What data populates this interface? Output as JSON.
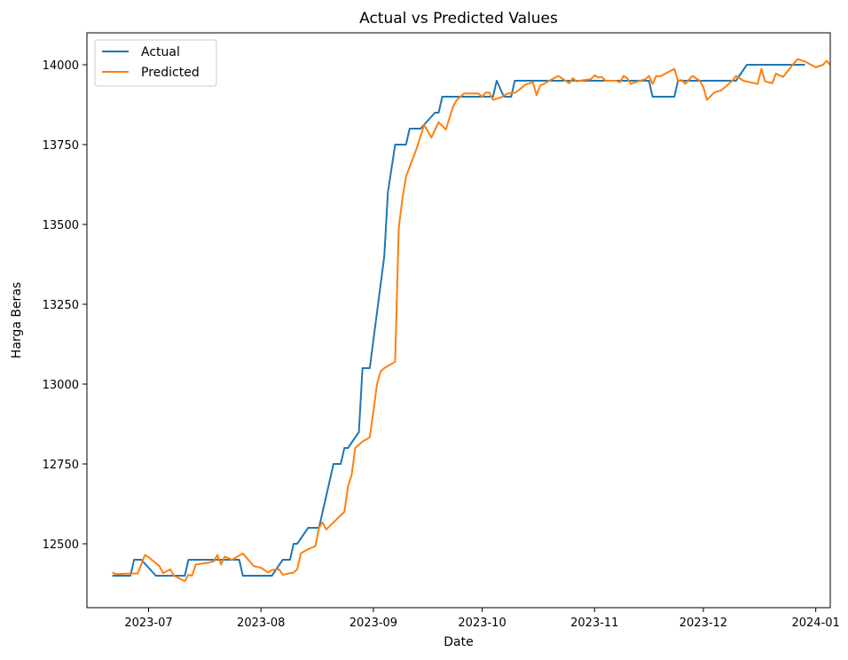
{
  "chart_data": {
    "type": "line",
    "title": "Actual vs Predicted Values",
    "xlabel": "Date",
    "ylabel": "Harga Beras",
    "xlim": [
      "2023-06-14",
      "2024-01-05"
    ],
    "ylim": [
      12300,
      14100
    ],
    "x_ticks": [
      "2023-07",
      "2023-08",
      "2023-09",
      "2023-10",
      "2023-11",
      "2023-12",
      "2024-01"
    ],
    "y_ticks": [
      12500,
      12750,
      13000,
      13250,
      13500,
      13750,
      14000
    ],
    "legend_position": "top-left",
    "grid": false,
    "colors": {
      "actual": "#1f77b4",
      "predicted": "#ff7f0e"
    },
    "series": [
      {
        "name": "Actual",
        "color": "#1f77b4",
        "points": [
          [
            "2023-06-21",
            12400
          ],
          [
            "2023-06-26",
            12400
          ],
          [
            "2023-06-27",
            12450
          ],
          [
            "2023-06-29",
            12450
          ],
          [
            "2023-07-03",
            12400
          ],
          [
            "2023-07-11",
            12400
          ],
          [
            "2023-07-12",
            12450
          ],
          [
            "2023-07-26",
            12450
          ],
          [
            "2023-07-27",
            12400
          ],
          [
            "2023-08-04",
            12400
          ],
          [
            "2023-08-07",
            12450
          ],
          [
            "2023-08-09",
            12450
          ],
          [
            "2023-08-10",
            12500
          ],
          [
            "2023-08-11",
            12500
          ],
          [
            "2023-08-14",
            12550
          ],
          [
            "2023-08-17",
            12550
          ],
          [
            "2023-08-21",
            12750
          ],
          [
            "2023-08-23",
            12750
          ],
          [
            "2023-08-24",
            12800
          ],
          [
            "2023-08-25",
            12800
          ],
          [
            "2023-08-28",
            12850
          ],
          [
            "2023-08-29",
            13050
          ],
          [
            "2023-08-31",
            13050
          ],
          [
            "2023-09-04",
            13400
          ],
          [
            "2023-09-05",
            13600
          ],
          [
            "2023-09-07",
            13750
          ],
          [
            "2023-09-10",
            13750
          ],
          [
            "2023-09-11",
            13800
          ],
          [
            "2023-09-14",
            13800
          ],
          [
            "2023-09-18",
            13850
          ],
          [
            "2023-09-19",
            13850
          ],
          [
            "2023-09-20",
            13900
          ],
          [
            "2023-10-04",
            13900
          ],
          [
            "2023-10-05",
            13950
          ],
          [
            "2023-10-07",
            13900
          ],
          [
            "2023-10-09",
            13900
          ],
          [
            "2023-10-10",
            13950
          ],
          [
            "2023-11-14",
            13950
          ],
          [
            "2023-11-16",
            13950
          ],
          [
            "2023-11-17",
            13900
          ],
          [
            "2023-11-23",
            13900
          ],
          [
            "2023-11-24",
            13950
          ],
          [
            "2023-12-04",
            13950
          ],
          [
            "2023-12-05",
            13950
          ],
          [
            "2023-12-10",
            13950
          ],
          [
            "2023-12-13",
            14000
          ],
          [
            "2023-12-29",
            14000
          ]
        ]
      },
      {
        "name": "Predicted",
        "color": "#ff7f0e",
        "points": [
          [
            "2023-06-21",
            12410
          ],
          [
            "2023-06-22",
            12405
          ],
          [
            "2023-06-26",
            12407
          ],
          [
            "2023-06-28",
            12407
          ],
          [
            "2023-06-30",
            12465
          ],
          [
            "2023-07-01",
            12458
          ],
          [
            "2023-07-04",
            12430
          ],
          [
            "2023-07-05",
            12408
          ],
          [
            "2023-07-07",
            12420
          ],
          [
            "2023-07-08",
            12400
          ],
          [
            "2023-07-11",
            12383
          ],
          [
            "2023-07-12",
            12403
          ],
          [
            "2023-07-13",
            12400
          ],
          [
            "2023-07-14",
            12435
          ],
          [
            "2023-07-17",
            12440
          ],
          [
            "2023-07-19",
            12445
          ],
          [
            "2023-07-20",
            12465
          ],
          [
            "2023-07-21",
            12435
          ],
          [
            "2023-07-22",
            12460
          ],
          [
            "2023-07-24",
            12450
          ],
          [
            "2023-07-27",
            12470
          ],
          [
            "2023-07-30",
            12430
          ],
          [
            "2023-08-01",
            12425
          ],
          [
            "2023-08-03",
            12410
          ],
          [
            "2023-08-04",
            12418
          ],
          [
            "2023-08-06",
            12420
          ],
          [
            "2023-08-07",
            12403
          ],
          [
            "2023-08-10",
            12410
          ],
          [
            "2023-08-11",
            12420
          ],
          [
            "2023-08-12",
            12470
          ],
          [
            "2023-08-14",
            12483
          ],
          [
            "2023-08-16",
            12493
          ],
          [
            "2023-08-17",
            12550
          ],
          [
            "2023-08-18",
            12567
          ],
          [
            "2023-08-19",
            12545
          ],
          [
            "2023-08-24",
            12600
          ],
          [
            "2023-08-25",
            12680
          ],
          [
            "2023-08-26",
            12715
          ],
          [
            "2023-08-27",
            12800
          ],
          [
            "2023-08-29",
            12820
          ],
          [
            "2023-08-31",
            12833
          ],
          [
            "2023-09-01",
            12915
          ],
          [
            "2023-09-02",
            13000
          ],
          [
            "2023-09-03",
            13040
          ],
          [
            "2023-09-04",
            13050
          ],
          [
            "2023-09-07",
            13070
          ],
          [
            "2023-09-08",
            13490
          ],
          [
            "2023-09-09",
            13580
          ],
          [
            "2023-09-10",
            13650
          ],
          [
            "2023-09-13",
            13740
          ],
          [
            "2023-09-15",
            13812
          ],
          [
            "2023-09-17",
            13772
          ],
          [
            "2023-09-19",
            13820
          ],
          [
            "2023-09-21",
            13797
          ],
          [
            "2023-09-23",
            13870
          ],
          [
            "2023-09-24",
            13890
          ],
          [
            "2023-09-26",
            13910
          ],
          [
            "2023-09-28",
            13910
          ],
          [
            "2023-09-30",
            13910
          ],
          [
            "2023-10-01",
            13900
          ],
          [
            "2023-10-02",
            13913
          ],
          [
            "2023-10-03",
            13913
          ],
          [
            "2023-10-04",
            13890
          ],
          [
            "2023-10-06",
            13897
          ],
          [
            "2023-10-08",
            13910
          ],
          [
            "2023-10-10",
            13912
          ],
          [
            "2023-10-11",
            13920
          ],
          [
            "2023-10-13",
            13938
          ],
          [
            "2023-10-15",
            13945
          ],
          [
            "2023-10-16",
            13905
          ],
          [
            "2023-10-17",
            13935
          ],
          [
            "2023-10-18",
            13940
          ],
          [
            "2023-10-20",
            13953
          ],
          [
            "2023-10-22",
            13965
          ],
          [
            "2023-10-24",
            13950
          ],
          [
            "2023-10-25",
            13942
          ],
          [
            "2023-10-26",
            13958
          ],
          [
            "2023-10-27",
            13948
          ],
          [
            "2023-10-29",
            13952
          ],
          [
            "2023-10-31",
            13955
          ],
          [
            "2023-11-01",
            13967
          ],
          [
            "2023-11-02",
            13960
          ],
          [
            "2023-11-03",
            13962
          ],
          [
            "2023-11-04",
            13950
          ],
          [
            "2023-11-07",
            13950
          ],
          [
            "2023-11-08",
            13945
          ],
          [
            "2023-11-09",
            13965
          ],
          [
            "2023-11-10",
            13958
          ],
          [
            "2023-11-11",
            13940
          ],
          [
            "2023-11-13",
            13948
          ],
          [
            "2023-11-15",
            13955
          ],
          [
            "2023-11-16",
            13965
          ],
          [
            "2023-11-17",
            13940
          ],
          [
            "2023-11-18",
            13965
          ],
          [
            "2023-11-19",
            13963
          ],
          [
            "2023-11-21",
            13975
          ],
          [
            "2023-11-23",
            13987
          ],
          [
            "2023-11-24",
            13950
          ],
          [
            "2023-11-25",
            13952
          ],
          [
            "2023-11-26",
            13940
          ],
          [
            "2023-11-28",
            13965
          ],
          [
            "2023-11-30",
            13950
          ],
          [
            "2023-12-01",
            13930
          ],
          [
            "2023-12-02",
            13890
          ],
          [
            "2023-12-04",
            13913
          ],
          [
            "2023-12-06",
            13920
          ],
          [
            "2023-12-09",
            13950
          ],
          [
            "2023-12-10",
            13965
          ],
          [
            "2023-12-12",
            13950
          ],
          [
            "2023-12-14",
            13945
          ],
          [
            "2023-12-16",
            13940
          ],
          [
            "2023-12-17",
            13987
          ],
          [
            "2023-12-18",
            13948
          ],
          [
            "2023-12-20",
            13942
          ],
          [
            "2023-12-21",
            13972
          ],
          [
            "2023-12-23",
            13962
          ],
          [
            "2023-12-26",
            14005
          ],
          [
            "2023-12-27",
            14018
          ],
          [
            "2023-12-29",
            14010
          ],
          [
            "2024-01-01",
            13992
          ],
          [
            "2024-01-03",
            14000
          ],
          [
            "2024-01-04",
            14012
          ],
          [
            "2024-01-05",
            14000
          ]
        ]
      }
    ]
  }
}
